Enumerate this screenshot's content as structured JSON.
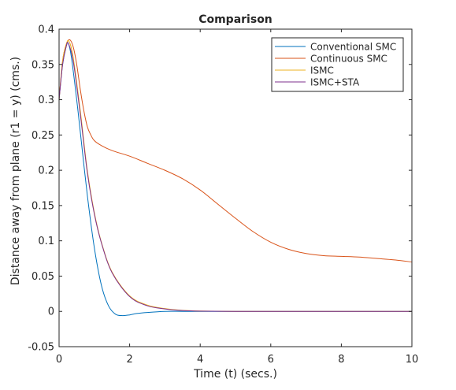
{
  "chart_data": {
    "type": "line",
    "title": "Comparison",
    "xlabel": "Time (t) (secs.)",
    "ylabel": "Distance away from plane (r1 = y) (cms.)",
    "xlim": [
      0,
      10
    ],
    "ylim": [
      -0.05,
      0.4
    ],
    "xticks": [
      0,
      2,
      4,
      6,
      8,
      10
    ],
    "xtick_labels": [
      "0",
      "2",
      "4",
      "6",
      "8",
      "10"
    ],
    "yticks": [
      -0.05,
      0,
      0.05,
      0.1,
      0.15,
      0.2,
      0.25,
      0.3,
      0.35,
      0.4
    ],
    "ytick_labels": [
      "-0.05",
      "0",
      "0.05",
      "0.1",
      "0.15",
      "0.2",
      "0.25",
      "0.3",
      "0.35",
      "0.4"
    ],
    "grid": false,
    "legend_position": "top-right",
    "series": [
      {
        "name": "Conventional SMC",
        "color": "#0072BD",
        "x": [
          0,
          0.1,
          0.2,
          0.26,
          0.35,
          0.5,
          0.6,
          0.8,
          1.0,
          1.2,
          1.4,
          1.6,
          1.8,
          2.0,
          2.2,
          2.5,
          3.0,
          3.5,
          4.0,
          5.0,
          10.0
        ],
        "y": [
          0.3,
          0.35,
          0.375,
          0.38,
          0.36,
          0.3,
          0.255,
          0.165,
          0.09,
          0.037,
          0.008,
          -0.004,
          -0.006,
          -0.005,
          -0.003,
          -0.0015,
          0.0,
          0.0,
          0.0,
          0.0,
          0.0
        ]
      },
      {
        "name": "Continuous SMC",
        "color": "#D95319",
        "x": [
          0,
          0.1,
          0.2,
          0.3,
          0.4,
          0.5,
          0.6,
          0.7,
          0.8,
          0.9,
          1.0,
          1.2,
          1.5,
          2.0,
          2.5,
          3.0,
          3.5,
          4.0,
          4.5,
          5.0,
          5.5,
          6.0,
          6.5,
          7.0,
          7.5,
          8.0,
          8.5,
          9.0,
          9.5,
          10.0
        ],
        "y": [
          0.3,
          0.355,
          0.378,
          0.385,
          0.375,
          0.35,
          0.315,
          0.285,
          0.262,
          0.25,
          0.242,
          0.235,
          0.228,
          0.22,
          0.21,
          0.2,
          0.188,
          0.172,
          0.152,
          0.132,
          0.113,
          0.098,
          0.088,
          0.082,
          0.079,
          0.078,
          0.077,
          0.075,
          0.073,
          0.07
        ]
      },
      {
        "name": "ISMC",
        "color": "#EDB120",
        "x": [
          0,
          0.1,
          0.2,
          0.28,
          0.4,
          0.6,
          0.8,
          1.0,
          1.2,
          1.5,
          2.0,
          2.5,
          3.0,
          3.5,
          4.0,
          5.0,
          6.0,
          10.0
        ],
        "y": [
          0.3,
          0.355,
          0.378,
          0.383,
          0.36,
          0.285,
          0.2,
          0.14,
          0.098,
          0.056,
          0.022,
          0.009,
          0.004,
          0.0015,
          0.0005,
          0.0,
          0.0,
          0.0
        ]
      },
      {
        "name": "ISMC+STA",
        "color": "#7E2F8E",
        "x": [
          0,
          0.1,
          0.2,
          0.26,
          0.4,
          0.6,
          0.8,
          1.0,
          1.2,
          1.5,
          2.0,
          2.5,
          3.0,
          3.5,
          4.0,
          5.0,
          6.0,
          10.0
        ],
        "y": [
          0.3,
          0.35,
          0.375,
          0.38,
          0.355,
          0.28,
          0.197,
          0.138,
          0.097,
          0.055,
          0.021,
          0.008,
          0.0035,
          0.0012,
          0.0004,
          0.0,
          0.0,
          0.0
        ]
      }
    ]
  }
}
